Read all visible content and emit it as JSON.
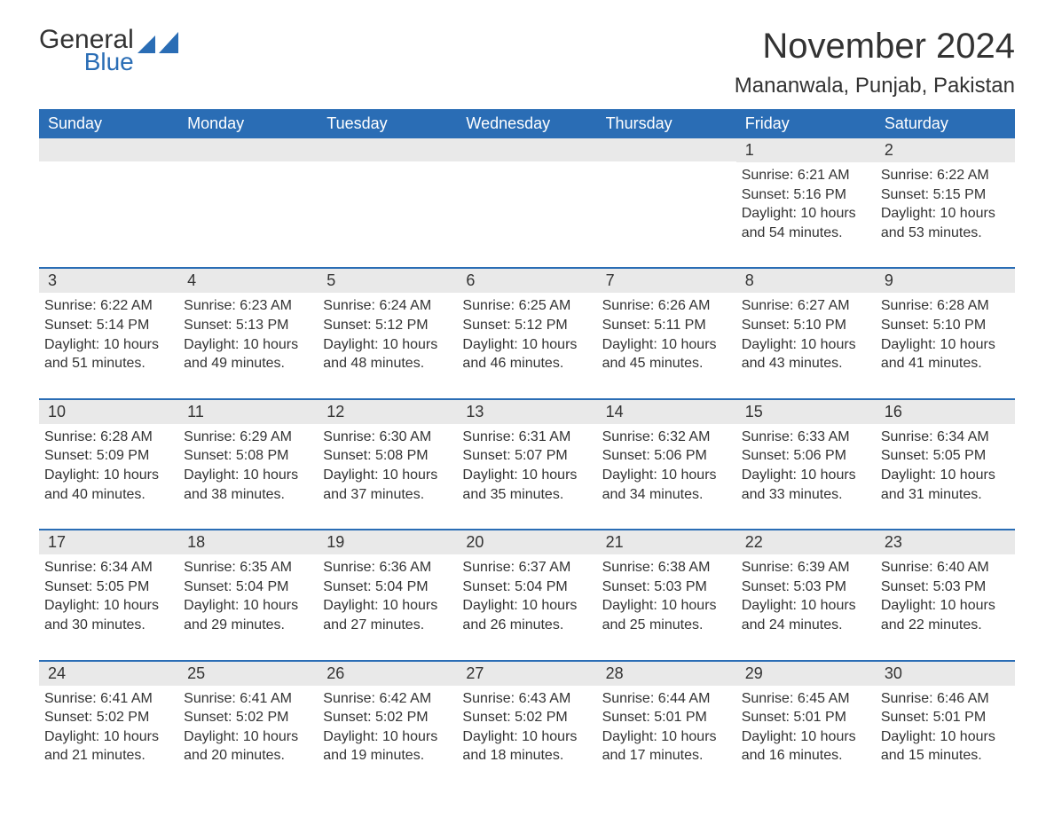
{
  "logo": {
    "word1": "General",
    "word2": "Blue",
    "icon_color": "#2a6db5"
  },
  "title": "November 2024",
  "subtitle": "Mananwala, Punjab, Pakistan",
  "colors": {
    "header_bg": "#2a6db5",
    "header_text": "#ffffff",
    "day_band_bg": "#e9e9e9",
    "row_divider": "#2a6db5",
    "text": "#333333",
    "page_bg": "#ffffff"
  },
  "labels": {
    "sunrise": "Sunrise:",
    "sunset": "Sunset:",
    "daylight": "Daylight:"
  },
  "day_headers": [
    "Sunday",
    "Monday",
    "Tuesday",
    "Wednesday",
    "Thursday",
    "Friday",
    "Saturday"
  ],
  "weeks": [
    [
      null,
      null,
      null,
      null,
      null,
      {
        "day": 1,
        "sunrise": "6:21 AM",
        "sunset": "5:16 PM",
        "daylight": "10 hours and 54 minutes."
      },
      {
        "day": 2,
        "sunrise": "6:22 AM",
        "sunset": "5:15 PM",
        "daylight": "10 hours and 53 minutes."
      }
    ],
    [
      {
        "day": 3,
        "sunrise": "6:22 AM",
        "sunset": "5:14 PM",
        "daylight": "10 hours and 51 minutes."
      },
      {
        "day": 4,
        "sunrise": "6:23 AM",
        "sunset": "5:13 PM",
        "daylight": "10 hours and 49 minutes."
      },
      {
        "day": 5,
        "sunrise": "6:24 AM",
        "sunset": "5:12 PM",
        "daylight": "10 hours and 48 minutes."
      },
      {
        "day": 6,
        "sunrise": "6:25 AM",
        "sunset": "5:12 PM",
        "daylight": "10 hours and 46 minutes."
      },
      {
        "day": 7,
        "sunrise": "6:26 AM",
        "sunset": "5:11 PM",
        "daylight": "10 hours and 45 minutes."
      },
      {
        "day": 8,
        "sunrise": "6:27 AM",
        "sunset": "5:10 PM",
        "daylight": "10 hours and 43 minutes."
      },
      {
        "day": 9,
        "sunrise": "6:28 AM",
        "sunset": "5:10 PM",
        "daylight": "10 hours and 41 minutes."
      }
    ],
    [
      {
        "day": 10,
        "sunrise": "6:28 AM",
        "sunset": "5:09 PM",
        "daylight": "10 hours and 40 minutes."
      },
      {
        "day": 11,
        "sunrise": "6:29 AM",
        "sunset": "5:08 PM",
        "daylight": "10 hours and 38 minutes."
      },
      {
        "day": 12,
        "sunrise": "6:30 AM",
        "sunset": "5:08 PM",
        "daylight": "10 hours and 37 minutes."
      },
      {
        "day": 13,
        "sunrise": "6:31 AM",
        "sunset": "5:07 PM",
        "daylight": "10 hours and 35 minutes."
      },
      {
        "day": 14,
        "sunrise": "6:32 AM",
        "sunset": "5:06 PM",
        "daylight": "10 hours and 34 minutes."
      },
      {
        "day": 15,
        "sunrise": "6:33 AM",
        "sunset": "5:06 PM",
        "daylight": "10 hours and 33 minutes."
      },
      {
        "day": 16,
        "sunrise": "6:34 AM",
        "sunset": "5:05 PM",
        "daylight": "10 hours and 31 minutes."
      }
    ],
    [
      {
        "day": 17,
        "sunrise": "6:34 AM",
        "sunset": "5:05 PM",
        "daylight": "10 hours and 30 minutes."
      },
      {
        "day": 18,
        "sunrise": "6:35 AM",
        "sunset": "5:04 PM",
        "daylight": "10 hours and 29 minutes."
      },
      {
        "day": 19,
        "sunrise": "6:36 AM",
        "sunset": "5:04 PM",
        "daylight": "10 hours and 27 minutes."
      },
      {
        "day": 20,
        "sunrise": "6:37 AM",
        "sunset": "5:04 PM",
        "daylight": "10 hours and 26 minutes."
      },
      {
        "day": 21,
        "sunrise": "6:38 AM",
        "sunset": "5:03 PM",
        "daylight": "10 hours and 25 minutes."
      },
      {
        "day": 22,
        "sunrise": "6:39 AM",
        "sunset": "5:03 PM",
        "daylight": "10 hours and 24 minutes."
      },
      {
        "day": 23,
        "sunrise": "6:40 AM",
        "sunset": "5:03 PM",
        "daylight": "10 hours and 22 minutes."
      }
    ],
    [
      {
        "day": 24,
        "sunrise": "6:41 AM",
        "sunset": "5:02 PM",
        "daylight": "10 hours and 21 minutes."
      },
      {
        "day": 25,
        "sunrise": "6:41 AM",
        "sunset": "5:02 PM",
        "daylight": "10 hours and 20 minutes."
      },
      {
        "day": 26,
        "sunrise": "6:42 AM",
        "sunset": "5:02 PM",
        "daylight": "10 hours and 19 minutes."
      },
      {
        "day": 27,
        "sunrise": "6:43 AM",
        "sunset": "5:02 PM",
        "daylight": "10 hours and 18 minutes."
      },
      {
        "day": 28,
        "sunrise": "6:44 AM",
        "sunset": "5:01 PM",
        "daylight": "10 hours and 17 minutes."
      },
      {
        "day": 29,
        "sunrise": "6:45 AM",
        "sunset": "5:01 PM",
        "daylight": "10 hours and 16 minutes."
      },
      {
        "day": 30,
        "sunrise": "6:46 AM",
        "sunset": "5:01 PM",
        "daylight": "10 hours and 15 minutes."
      }
    ]
  ]
}
